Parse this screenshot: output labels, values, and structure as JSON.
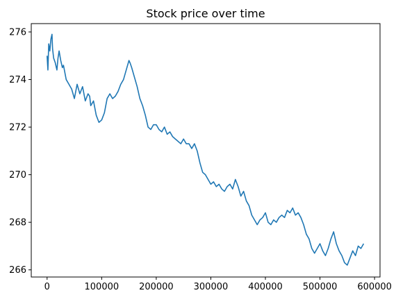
{
  "chart_data": {
    "type": "line",
    "title": "Stock price over time",
    "xlabel": "",
    "ylabel": "",
    "xlim": [
      -29000,
      610000
    ],
    "ylim": [
      265.7,
      276.35
    ],
    "grid": false,
    "x_ticks": [
      0,
      100000,
      200000,
      300000,
      400000,
      500000,
      600000
    ],
    "x_tick_labels": [
      "0",
      "100000",
      "200000",
      "300000",
      "400000",
      "500000",
      "600000"
    ],
    "y_ticks": [
      266,
      268,
      270,
      272,
      274,
      276
    ],
    "y_tick_labels": [
      "266",
      "268",
      "270",
      "272",
      "274",
      "276"
    ],
    "series": [
      {
        "color": "#1f77b4",
        "x": [
          0,
          1500,
          3000,
          5000,
          7000,
          9000,
          10000,
          12000,
          15000,
          18000,
          20000,
          22000,
          25000,
          28000,
          30000,
          35000,
          40000,
          45000,
          50000,
          55000,
          60000,
          65000,
          70000,
          75000,
          78000,
          80000,
          85000,
          90000,
          95000,
          100000,
          105000,
          110000,
          115000,
          120000,
          125000,
          130000,
          135000,
          140000,
          145000,
          150000,
          152000,
          155000,
          160000,
          165000,
          170000,
          175000,
          180000,
          185000,
          190000,
          195000,
          200000,
          205000,
          210000,
          215000,
          220000,
          225000,
          230000,
          235000,
          240000,
          245000,
          250000,
          255000,
          260000,
          265000,
          270000,
          275000,
          280000,
          285000,
          290000,
          295000,
          300000,
          305000,
          310000,
          315000,
          320000,
          325000,
          330000,
          335000,
          340000,
          345000,
          350000,
          355000,
          360000,
          365000,
          370000,
          375000,
          380000,
          385000,
          390000,
          395000,
          400000,
          405000,
          410000,
          415000,
          420000,
          425000,
          430000,
          435000,
          440000,
          445000,
          450000,
          455000,
          460000,
          465000,
          470000,
          475000,
          480000,
          485000,
          490000,
          495000,
          500000,
          505000,
          510000,
          515000,
          520000,
          525000,
          530000,
          535000,
          540000,
          545000,
          550000,
          555000,
          560000,
          565000,
          570000,
          575000,
          580000
        ],
        "y": [
          275.0,
          274.4,
          275.5,
          275.2,
          275.7,
          275.9,
          275.3,
          274.9,
          274.7,
          274.4,
          274.9,
          275.2,
          274.8,
          274.5,
          274.6,
          274.0,
          273.8,
          273.6,
          273.2,
          273.8,
          273.4,
          273.7,
          273.1,
          273.4,
          273.3,
          272.9,
          273.1,
          272.5,
          272.2,
          272.3,
          272.6,
          273.2,
          273.4,
          273.2,
          273.3,
          273.5,
          273.8,
          274.0,
          274.4,
          274.8,
          274.7,
          274.5,
          274.1,
          273.7,
          273.2,
          272.9,
          272.5,
          272.0,
          271.9,
          272.1,
          272.1,
          271.9,
          271.8,
          272.0,
          271.7,
          271.8,
          271.6,
          271.5,
          271.4,
          271.3,
          271.5,
          271.3,
          271.3,
          271.1,
          271.3,
          271.0,
          270.5,
          270.1,
          270.0,
          269.8,
          269.6,
          269.7,
          269.5,
          269.6,
          269.4,
          269.3,
          269.5,
          269.6,
          269.4,
          269.8,
          269.5,
          269.1,
          269.3,
          268.9,
          268.7,
          268.3,
          268.1,
          267.9,
          268.1,
          268.2,
          268.4,
          268.0,
          267.9,
          268.1,
          268.0,
          268.2,
          268.3,
          268.2,
          268.5,
          268.4,
          268.6,
          268.3,
          268.4,
          268.2,
          267.9,
          267.5,
          267.3,
          266.9,
          266.7,
          266.9,
          267.1,
          266.8,
          266.6,
          266.9,
          267.3,
          267.6,
          267.1,
          266.8,
          266.6,
          266.3,
          266.2,
          266.5,
          266.8,
          266.6,
          267.0,
          266.9,
          267.1
        ]
      }
    ]
  }
}
